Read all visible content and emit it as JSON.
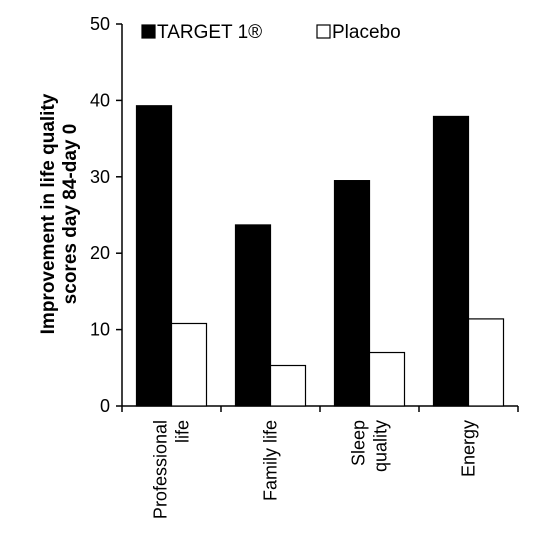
{
  "chart_data": {
    "type": "bar",
    "title": "",
    "ylabel_lines": [
      "Improvement in life quality",
      "scores day 84-day 0"
    ],
    "xlabel": "",
    "ylim": [
      0,
      50
    ],
    "yticks": [
      0,
      10,
      20,
      30,
      40,
      50
    ],
    "categories": [
      [
        "Professional",
        "life"
      ],
      [
        "Family life"
      ],
      [
        "Sleep",
        "quality"
      ],
      [
        "Energy"
      ]
    ],
    "series": [
      {
        "name": "TARGET 1®",
        "color": "#000000",
        "values": [
          39.3,
          23.7,
          29.5,
          37.9
        ]
      },
      {
        "name": "Placebo",
        "color": "#ffffff",
        "values": [
          10.8,
          5.3,
          7.0,
          11.4
        ]
      }
    ],
    "legend": "top",
    "grid": false
  }
}
